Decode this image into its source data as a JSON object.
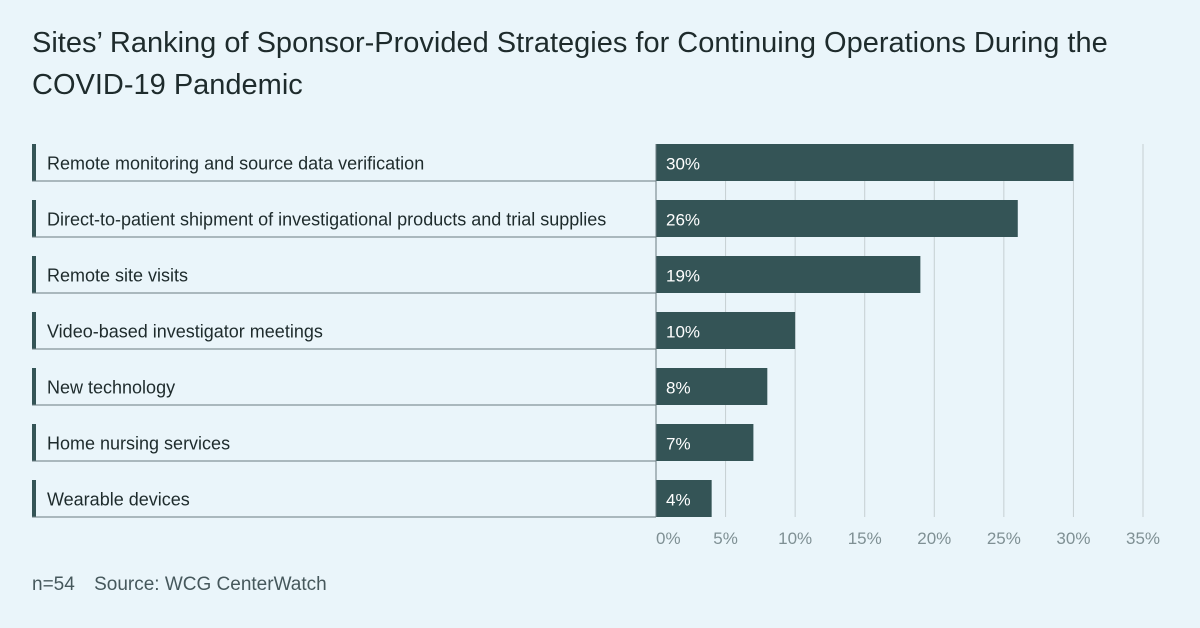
{
  "title": "Sites’ Ranking of Sponsor-Provided Strategies for Continuing Operations During the COVID-19 Pandemic",
  "footer": {
    "n": "n=54",
    "source": "Source: WCG CenterWatch"
  },
  "colors": {
    "background": "#eaf5fa",
    "bar": "#345456",
    "accent": "#345456",
    "gridline": "#c5cfd2"
  },
  "chart_data": {
    "type": "bar",
    "orientation": "horizontal",
    "categories": [
      "Remote monitoring and source data verification",
      "Direct-to-patient shipment of investigational products and trial supplies",
      "Remote site visits",
      "Video-based investigator meetings",
      "New technology",
      "Home nursing services",
      "Wearable devices"
    ],
    "values": [
      30,
      26,
      19,
      10,
      8,
      7,
      4
    ],
    "data_labels": [
      "30%",
      "26%",
      "19%",
      "10%",
      "8%",
      "7%",
      "4%"
    ],
    "xlim": [
      0,
      35
    ],
    "xticks": [
      0,
      5,
      10,
      15,
      20,
      25,
      30,
      35
    ],
    "xtick_labels": [
      "0%",
      "5%",
      "10%",
      "15%",
      "20%",
      "25%",
      "30%",
      "35%"
    ],
    "grid": true
  }
}
